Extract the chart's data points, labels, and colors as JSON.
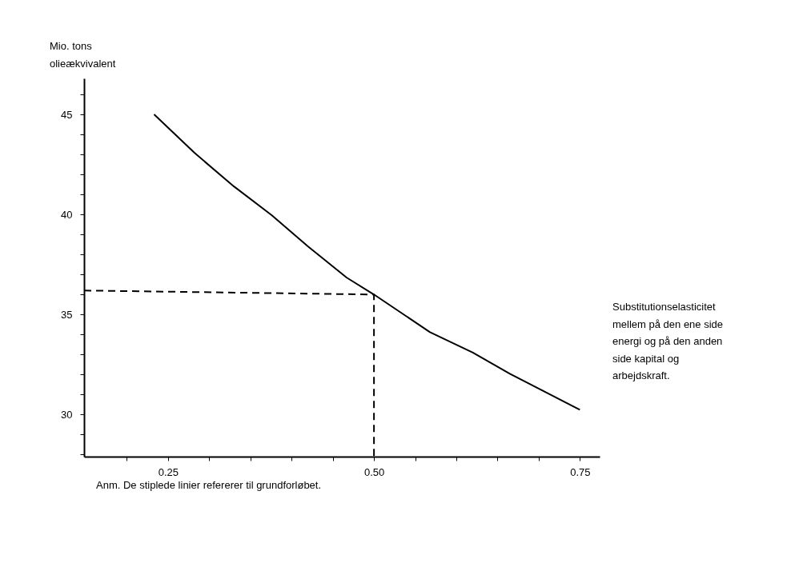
{
  "chart_data": {
    "type": "line",
    "xlabel": "Substitutionselasticitet\nmellem på den ene side\nenergi og på den anden\nside kapital og\narbejdskraft.",
    "ylabel": "Mio. tons\nolieækvivalent",
    "annotations": [
      "Anm. De stiplede linier refererer til grundforløbet."
    ],
    "series": [
      {
        "color": "#000000",
        "line_style": "solid",
        "x": [
          0.233,
          0.282,
          0.33,
          0.376,
          0.42,
          0.467,
          0.5,
          0.568,
          0.62,
          0.665,
          0.75
        ],
        "values": [
          45.0,
          43.08,
          41.4,
          39.96,
          38.4,
          36.84,
          36.0,
          34.12,
          33.1,
          32.04,
          30.24
        ]
      },
      {
        "color": "#000000",
        "line_style": "dashed",
        "x": [
          0.148,
          0.5,
          0.5
        ],
        "values": [
          36.2,
          36.0,
          27.9
        ]
      }
    ],
    "xlim": [
      0.148,
      0.774
    ],
    "ylim": [
      27.9,
      46.8
    ],
    "xticks": [
      {
        "value": 0.2,
        "label": null
      },
      {
        "value": 0.25,
        "label": "0.25"
      },
      {
        "value": 0.3,
        "label": null
      },
      {
        "value": 0.35,
        "label": null
      },
      {
        "value": 0.4,
        "label": null
      },
      {
        "value": 0.45,
        "label": null
      },
      {
        "value": 0.5,
        "label": "0.50"
      },
      {
        "value": 0.55,
        "label": null
      },
      {
        "value": 0.6,
        "label": null
      },
      {
        "value": 0.65,
        "label": null
      },
      {
        "value": 0.7,
        "label": null
      },
      {
        "value": 0.75,
        "label": "0.75"
      }
    ],
    "yticks": [
      {
        "value": 28,
        "label": null
      },
      {
        "value": 29,
        "label": null
      },
      30,
      {
        "value": 31,
        "label": null
      },
      {
        "value": 32,
        "label": null
      },
      {
        "value": 33,
        "label": null
      },
      {
        "value": 34,
        "label": null
      },
      35,
      {
        "value": 36,
        "label": null
      },
      {
        "value": 37,
        "label": null
      },
      {
        "value": 38,
        "label": null
      },
      {
        "value": 39,
        "label": null
      },
      40,
      {
        "value": 41,
        "label": null
      },
      {
        "value": 42,
        "label": null
      },
      {
        "value": 43,
        "label": null
      },
      {
        "value": 44,
        "label": null
      },
      45,
      {
        "value": 46,
        "label": null
      }
    ],
    "grid": false,
    "marker": "none"
  }
}
